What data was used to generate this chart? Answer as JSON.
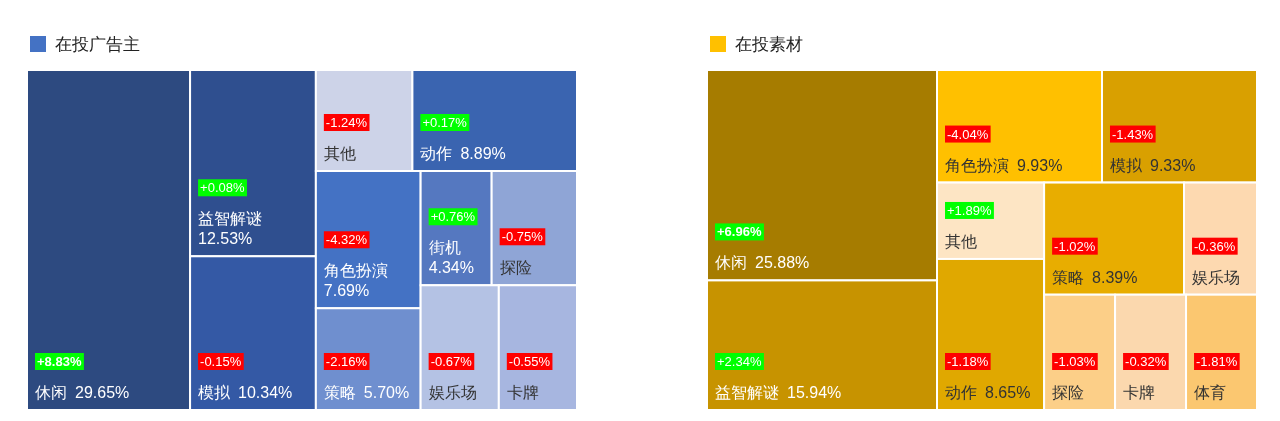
{
  "chart_data": [
    {
      "type": "other",
      "title": "在投广告主",
      "categories": [
        "休闲",
        "益智解谜",
        "模拟",
        "其他",
        "动作",
        "角色扮演",
        "策略",
        "街机",
        "探险",
        "娱乐场",
        "卡牌"
      ],
      "series": [
        {
          "color": "#4472c4",
          "values": [
            29.65,
            12.53,
            10.34,
            null,
            8.89,
            7.69,
            5.7,
            4.34,
            null,
            null,
            null
          ],
          "value_labels": [
            "29.65%",
            "12.53%",
            "10.34%",
            null,
            "8.89%",
            "7.69%",
            "5.70%",
            "4.34%",
            null,
            null,
            null
          ],
          "colors": [
            "#2d4a80",
            "#2f4f8f",
            "#3459a5",
            "#cdd3e8",
            "#3a64b0",
            "#4472c4",
            "#6f8fcf",
            "#5578c0",
            "#8fa5d6",
            "#b4c2e4",
            "#a7b6e0"
          ]
        },
        {
          "values": [
            8.83,
            0.08,
            -0.15,
            -1.24,
            0.17,
            -4.32,
            -2.16,
            0.76,
            -0.75,
            -0.67,
            -0.55
          ],
          "value_labels": [
            "+8.83%",
            "+0.08%",
            "-0.15%",
            "-1.24%",
            "+0.17%",
            "-4.32%",
            "-2.16%",
            "+0.76%",
            "-0.75%",
            "-0.67%",
            "-0.55%"
          ],
          "colors": [
            "#00ff00",
            "#00ff00",
            "#ff0000",
            "#ff0000",
            "#00ff00",
            "#ff0000",
            "#ff0000",
            "#00ff00",
            "#ff0000",
            "#ff0000",
            "#ff0000"
          ]
        }
      ]
    },
    {
      "type": "other",
      "title": "在投素材",
      "categories": [
        "休闲",
        "益智解谜",
        "角色扮演",
        "模拟",
        "其他",
        "动作",
        "策略",
        "娱乐场",
        "探险",
        "卡牌",
        "体育"
      ],
      "series": [
        {
          "color": "#ffc000",
          "values": [
            25.88,
            15.94,
            9.93,
            9.33,
            null,
            8.65,
            8.39,
            null,
            null,
            null,
            null
          ],
          "value_labels": [
            "25.88%",
            "15.94%",
            "9.93%",
            "9.33%",
            null,
            "8.65%",
            "8.39%",
            null,
            null,
            null,
            null
          ],
          "colors": [
            "#a67c00",
            "#c79300",
            "#ffc000",
            "#d9a000",
            "#fde5c4",
            "#e0a800",
            "#e8ad00",
            "#fdd9b0",
            "#fccf88",
            "#fbd8ae",
            "#fbc770"
          ]
        },
        {
          "values": [
            6.96,
            2.34,
            -4.04,
            -1.43,
            1.89,
            -1.18,
            -1.02,
            -0.36,
            -1.03,
            -0.32,
            -1.81
          ],
          "value_labels": [
            "+6.96%",
            "+2.34%",
            "-4.04%",
            "-1.43%",
            "+1.89%",
            "-1.18%",
            "-1.02%",
            "-0.36%",
            "-1.03%",
            "-0.32%",
            "-1.81%"
          ],
          "colors": [
            "#00ff00",
            "#00ff00",
            "#ff0000",
            "#ff0000",
            "#00ff00",
            "#ff0000",
            "#ff0000",
            "#ff0000",
            "#ff0000",
            "#ff0000",
            "#ff0000"
          ]
        }
      ]
    }
  ]
}
